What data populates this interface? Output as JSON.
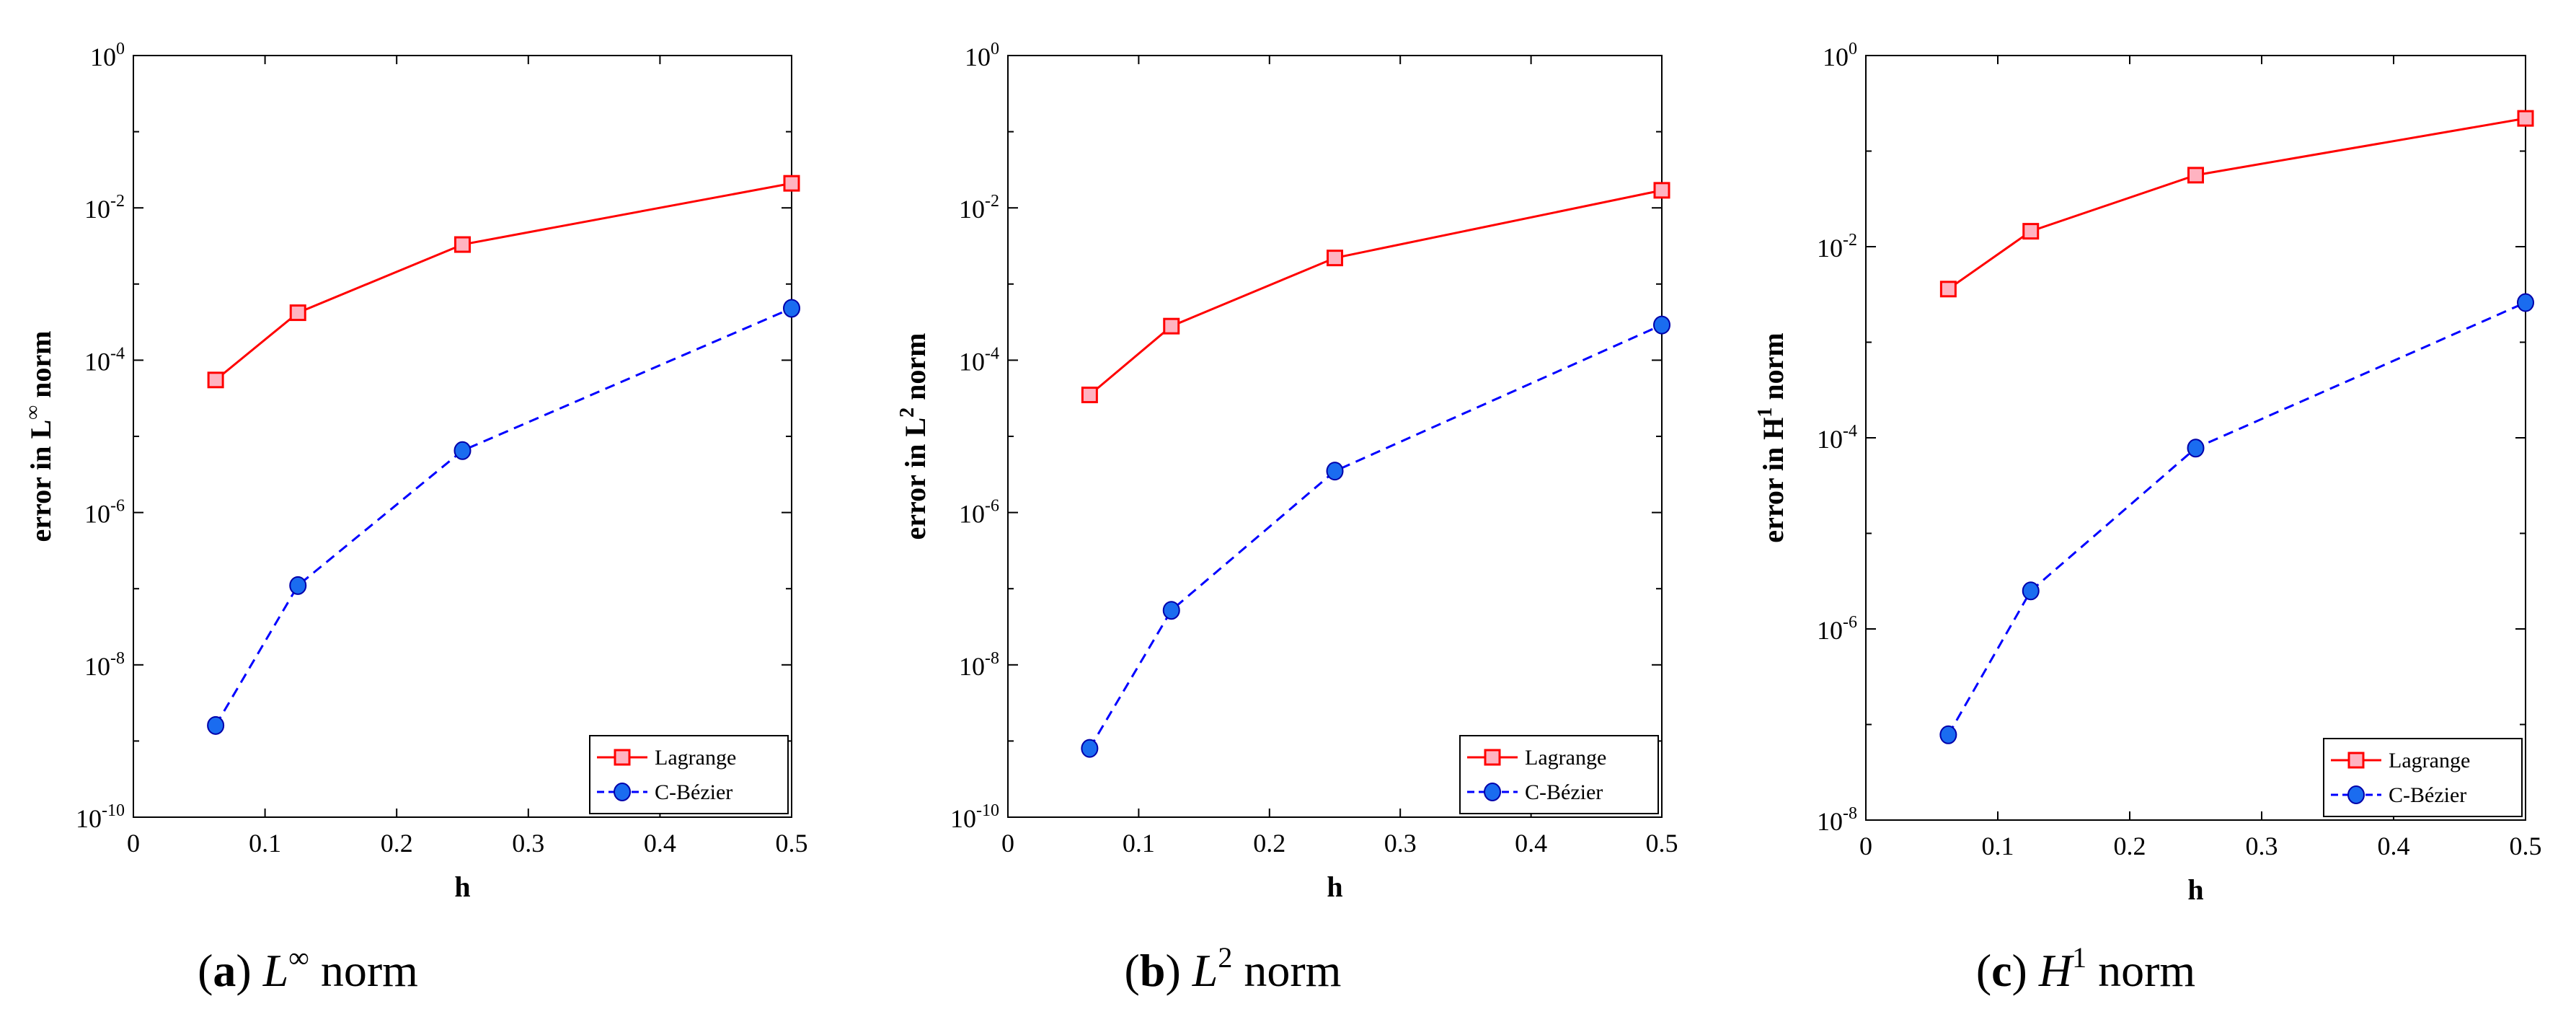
{
  "chart_data": [
    {
      "type": "line",
      "panel": "a",
      "caption": {
        "tag": "a",
        "symbol": "L",
        "superscript": "∞",
        "rest": "norm"
      },
      "xlabel": "h",
      "ylabel": {
        "prefix": "error in L",
        "superscript": "∞",
        "suffix": " norm"
      },
      "x_scale": "linear",
      "y_scale": "log",
      "xlim": [
        0,
        0.5
      ],
      "ylim_exp": [
        -10,
        0
      ],
      "x_ticks": [
        "0",
        "0.1",
        "0.2",
        "0.3",
        "0.4",
        "0.5"
      ],
      "x_tick_values": [
        0,
        0.1,
        0.2,
        0.3,
        0.4,
        0.5
      ],
      "y_tick_exponents": [
        -10,
        -8,
        -6,
        -4,
        -2,
        0
      ],
      "y_tick_exponent_labels": [
        "-10",
        "-8",
        "-6",
        "-4",
        "-2",
        "0"
      ],
      "y_tick_base": "10",
      "legend_position": "bottom-right",
      "series": [
        {
          "name": "Lagrange",
          "color": "#ff0000",
          "style": "solid",
          "marker": "square",
          "x": [
            0.0625,
            0.125,
            0.25,
            0.5
          ],
          "y": [
            5.5e-05,
            0.00042,
            0.0033,
            0.021
          ]
        },
        {
          "name": "C-Bézier",
          "color": "#0000ff",
          "style": "dashed",
          "marker": "circle",
          "x": [
            0.0625,
            0.125,
            0.25,
            0.5
          ],
          "y": [
            1.6e-09,
            1.1e-07,
            6.5e-06,
            0.00048
          ]
        }
      ]
    },
    {
      "type": "line",
      "panel": "b",
      "caption": {
        "tag": "b",
        "symbol": "L",
        "superscript": "2",
        "rest": "norm"
      },
      "xlabel": "h",
      "ylabel": {
        "prefix": "error in L",
        "superscript": "2",
        "suffix": " norm"
      },
      "x_scale": "linear",
      "y_scale": "log",
      "xlim": [
        0,
        0.5
      ],
      "ylim_exp": [
        -10,
        0
      ],
      "x_ticks": [
        "0",
        "0.1",
        "0.2",
        "0.3",
        "0.4",
        "0.5"
      ],
      "x_tick_values": [
        0,
        0.1,
        0.2,
        0.3,
        0.4,
        0.5
      ],
      "y_tick_exponents": [
        -10,
        -8,
        -6,
        -4,
        -2,
        0
      ],
      "y_tick_exponent_labels": [
        "-10",
        "-8",
        "-6",
        "-4",
        "-2",
        "0"
      ],
      "y_tick_base": "10",
      "legend_position": "bottom-right",
      "series": [
        {
          "name": "Lagrange",
          "color": "#ff0000",
          "style": "solid",
          "marker": "square",
          "x": [
            0.0625,
            0.125,
            0.25,
            0.5
          ],
          "y": [
            3.5e-05,
            0.00028,
            0.0022,
            0.017
          ]
        },
        {
          "name": "C-Bézier",
          "color": "#0000ff",
          "style": "dashed",
          "marker": "circle",
          "x": [
            0.0625,
            0.125,
            0.25,
            0.5
          ],
          "y": [
            8e-10,
            5.2e-08,
            3.5e-06,
            0.00029
          ]
        }
      ]
    },
    {
      "type": "line",
      "panel": "c",
      "caption": {
        "tag": "c",
        "symbol": "H",
        "superscript": "1",
        "rest": "norm"
      },
      "xlabel": "h",
      "ylabel": {
        "prefix": "error in H",
        "superscript": "1",
        "suffix": " norm"
      },
      "x_scale": "linear",
      "y_scale": "log",
      "xlim": [
        0,
        0.5
      ],
      "ylim_exp": [
        -8,
        0
      ],
      "x_ticks": [
        "0",
        "0.1",
        "0.2",
        "0.3",
        "0.4",
        "0.5"
      ],
      "x_tick_values": [
        0,
        0.1,
        0.2,
        0.3,
        0.4,
        0.5
      ],
      "y_tick_exponents": [
        -8,
        -6,
        -4,
        -2,
        0
      ],
      "y_tick_exponent_labels": [
        "-8",
        "-6",
        "-4",
        "-2",
        "0"
      ],
      "y_tick_base": "10",
      "legend_position": "bottom-right",
      "series": [
        {
          "name": "Lagrange",
          "color": "#ff0000",
          "style": "solid",
          "marker": "square",
          "x": [
            0.0625,
            0.125,
            0.25,
            0.5
          ],
          "y": [
            0.0036,
            0.0145,
            0.056,
            0.22
          ]
        },
        {
          "name": "C-Bézier",
          "color": "#0000ff",
          "style": "dashed",
          "marker": "circle",
          "x": [
            0.0625,
            0.125,
            0.25,
            0.5
          ],
          "y": [
            7.8e-08,
            2.5e-06,
            7.8e-05,
            0.0026
          ]
        }
      ]
    }
  ]
}
